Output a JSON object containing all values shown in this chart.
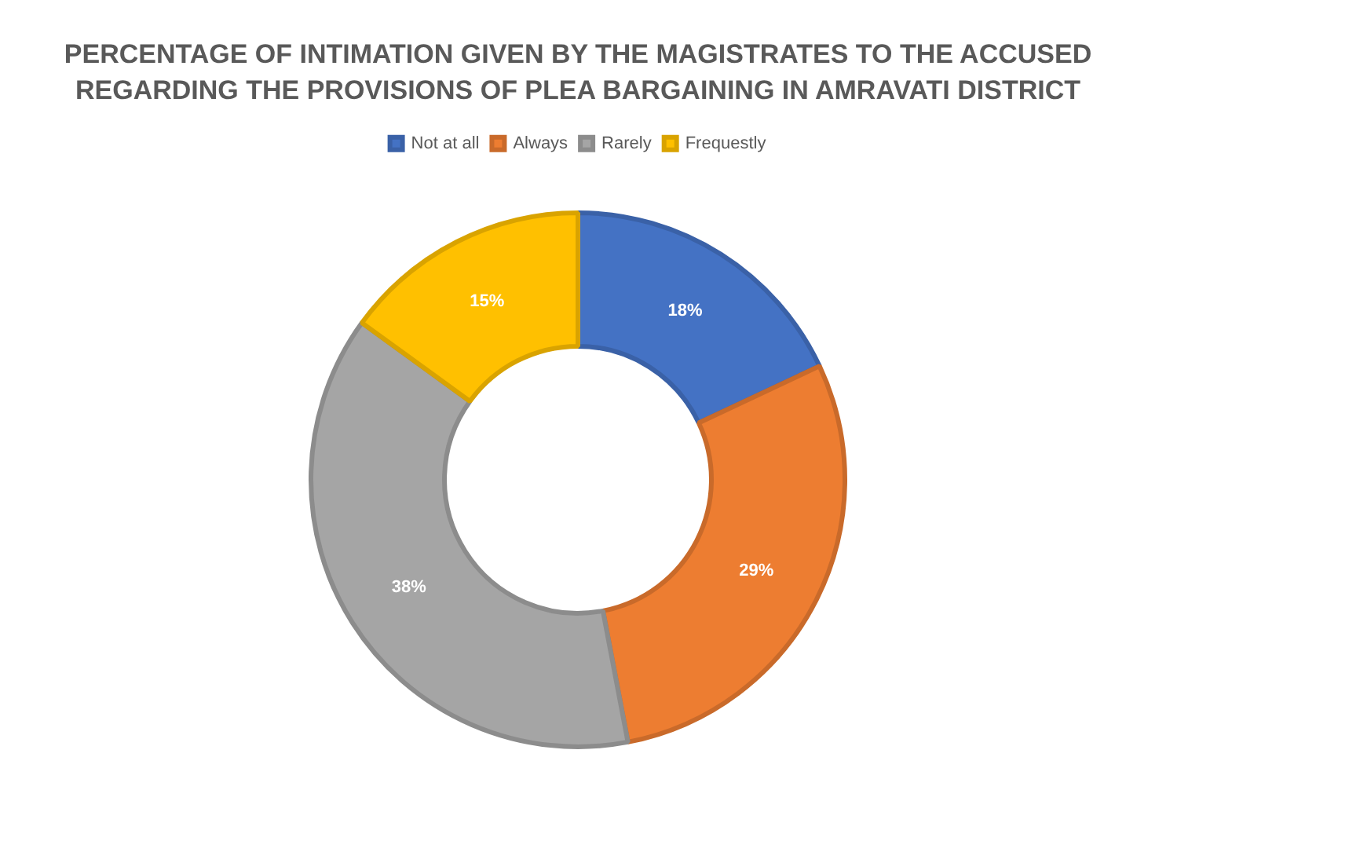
{
  "chart_data": {
    "type": "donut",
    "title": "PERCENTAGE OF INTIMATION GIVEN BY THE MAGISTRATES TO THE ACCUSED REGARDING THE PROVISIONS OF PLEA BARGAINING IN AMRAVATI DISTRICT",
    "categories": [
      "Not at all",
      "Always",
      "Rarely",
      "Frequestly"
    ],
    "values": [
      18,
      29,
      38,
      15
    ],
    "colors": [
      "#4472c4",
      "#ed7d31",
      "#a5a5a5",
      "#ffc000"
    ],
    "value_labels": [
      "18%",
      "29%",
      "38%",
      "15%"
    ],
    "legend": "top"
  }
}
